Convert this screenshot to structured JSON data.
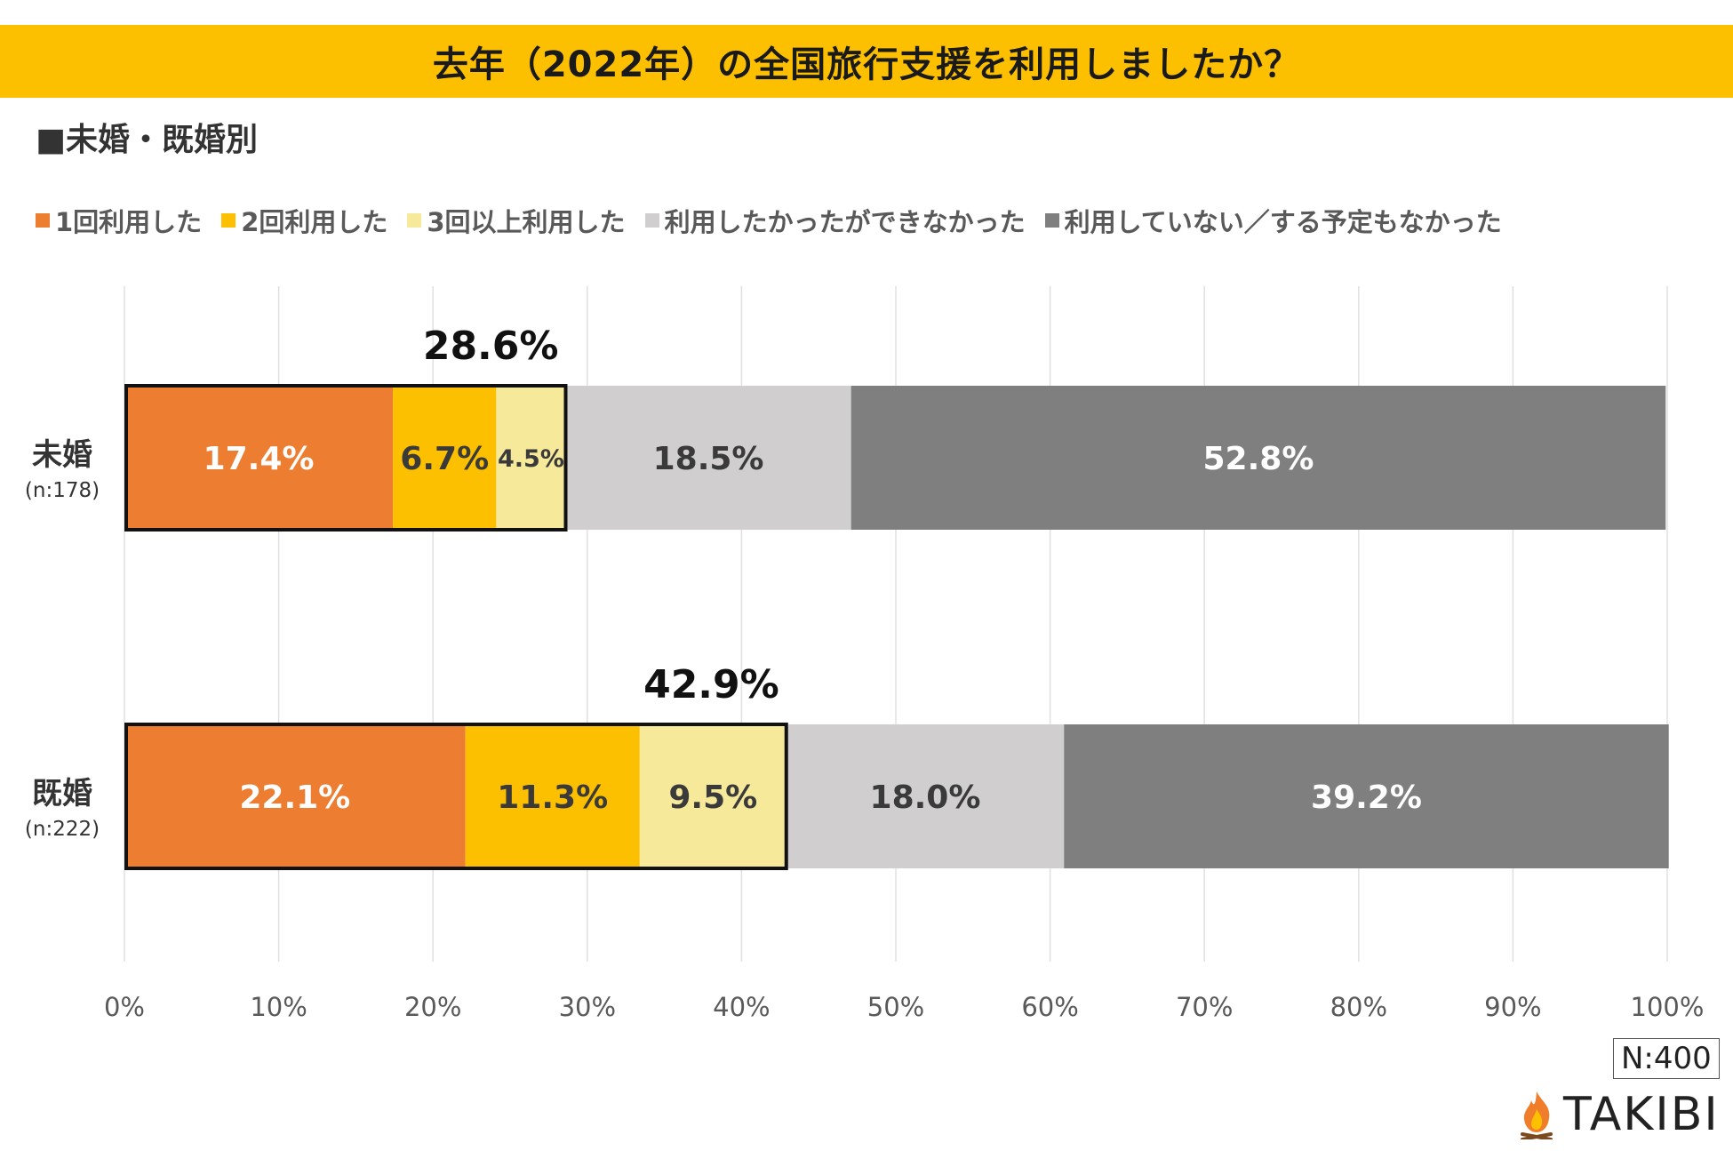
{
  "title": "去年（2022年）の全国旅行支援を利用しましたか？",
  "subtitle": "■未婚・既婚別",
  "sample_total": "N:400",
  "logo_text": "TAKIBI",
  "colors": {
    "title_band": "#fcc000",
    "once": "#ed7d31",
    "twice": "#fcc000",
    "three_plus": "#f6e99a",
    "wanted_but_couldnt": "#d0cece",
    "not_used": "#7f7f7f",
    "grid": "#e0e0e0"
  },
  "chart_data": {
    "type": "bar",
    "orientation": "horizontal",
    "stacked": true,
    "title": "去年（2022年）の全国旅行支援を利用しましたか？",
    "categories": [
      {
        "label": "未婚",
        "n": "(n:178)"
      },
      {
        "label": "既婚",
        "n": "(n:222)"
      }
    ],
    "series": [
      {
        "name": "1回利用した",
        "color_key": "once",
        "values": [
          17.4,
          22.1
        ],
        "labels": [
          "17.4%",
          "22.1%"
        ],
        "label_color": "#ffffff"
      },
      {
        "name": "2回利用した",
        "color_key": "twice",
        "values": [
          6.7,
          11.3
        ],
        "labels": [
          "6.7%",
          "11.3%"
        ],
        "label_color": "#3a3a3a"
      },
      {
        "name": "3回以上利用した",
        "color_key": "three_plus",
        "values": [
          4.5,
          9.5
        ],
        "labels": [
          "4.5%",
          "9.5%"
        ],
        "label_color": "#3a3a3a"
      },
      {
        "name": "利用したかったができなかった",
        "color_key": "wanted_but_couldnt",
        "values": [
          18.5,
          18.0
        ],
        "labels": [
          "18.5%",
          "18.0%"
        ],
        "label_color": "#3a3a3a"
      },
      {
        "name": "利用していない／する予定もなかった",
        "color_key": "not_used",
        "values": [
          52.8,
          39.2
        ],
        "labels": [
          "52.8%",
          "39.2%"
        ],
        "label_color": "#ffffff"
      }
    ],
    "used_totals": {
      "values": [
        28.6,
        42.9
      ],
      "labels": [
        "28.6%",
        "42.9%"
      ]
    },
    "x_ticks": [
      "0%",
      "10%",
      "20%",
      "30%",
      "40%",
      "50%",
      "60%",
      "70%",
      "80%",
      "90%",
      "100%"
    ],
    "xlim": [
      0,
      100
    ],
    "grid": true,
    "legend_position": "top"
  }
}
